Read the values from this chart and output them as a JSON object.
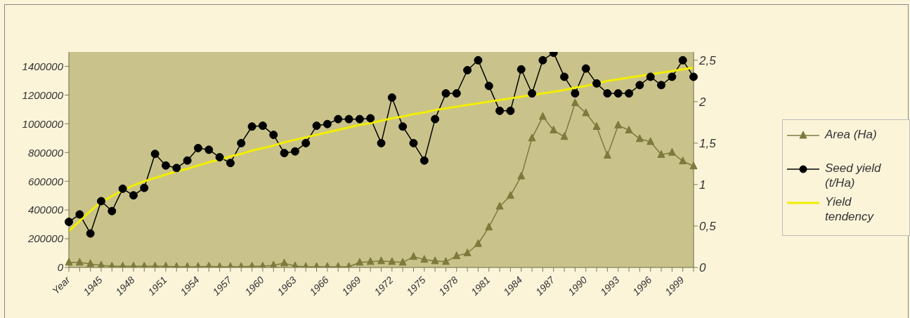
{
  "chart_data": {
    "type": "line",
    "categories": [
      "Year",
      null,
      null,
      "1945",
      null,
      null,
      "1948",
      null,
      null,
      "1951",
      null,
      null,
      "1954",
      null,
      null,
      "1957",
      null,
      null,
      "1960",
      null,
      null,
      "1963",
      null,
      null,
      "1966",
      null,
      null,
      "1969",
      null,
      null,
      "1972",
      null,
      null,
      "1975",
      null,
      null,
      "1978",
      null,
      null,
      "1981",
      null,
      null,
      "1984",
      null,
      null,
      "1987",
      null,
      null,
      "1990",
      null,
      null,
      "1993",
      null,
      null,
      "1996",
      null,
      null,
      "1999",
      null
    ],
    "series": [
      {
        "name": "Area (Ha)",
        "color": "#7d7a3c",
        "marker": "triangle",
        "axis": "y",
        "values": [
          35000,
          35000,
          25000,
          15000,
          8000,
          8000,
          8000,
          8000,
          8000,
          8000,
          5000,
          5000,
          5000,
          8000,
          5000,
          5000,
          5000,
          8000,
          8000,
          15000,
          30000,
          10000,
          5000,
          5000,
          5000,
          5000,
          5000,
          35000,
          40000,
          45000,
          40000,
          35000,
          75000,
          55000,
          45000,
          40000,
          80000,
          100000,
          165000,
          280000,
          425000,
          500000,
          635000,
          900000,
          1050000,
          955000,
          910000,
          1145000,
          1075000,
          980000,
          780000,
          990000,
          955000,
          895000,
          875000,
          785000,
          800000,
          740000,
          705000
        ]
      },
      {
        "name": "Seed yield (t/Ha)",
        "color": "#000000",
        "marker": "circle",
        "axis": "y2",
        "values": [
          0.55,
          0.64,
          0.41,
          0.8,
          0.68,
          0.95,
          0.87,
          0.96,
          1.37,
          1.23,
          1.2,
          1.29,
          1.44,
          1.42,
          1.33,
          1.26,
          1.5,
          1.7,
          1.71,
          1.6,
          1.38,
          1.4,
          1.5,
          1.71,
          1.73,
          1.79,
          1.79,
          1.79,
          1.8,
          1.5,
          2.05,
          1.7,
          1.5,
          1.29,
          1.79,
          2.1,
          2.1,
          2.38,
          2.5,
          2.19,
          1.89,
          1.89,
          2.39,
          2.1,
          2.5,
          2.59,
          2.3,
          2.1,
          2.4,
          2.22,
          2.1,
          2.1,
          2.1,
          2.2,
          2.3,
          2.2,
          2.3,
          2.5,
          2.3
        ]
      },
      {
        "name": "Yield tendency",
        "color": "#f2ee00",
        "marker": "none",
        "axis": "y2",
        "values": [
          0.44,
          0.56,
          0.68,
          0.79,
          0.86,
          0.93,
          0.99,
          1.04,
          1.08,
          1.12,
          1.16,
          1.19,
          1.23,
          1.27,
          1.3,
          1.34,
          1.37,
          1.41,
          1.44,
          1.47,
          1.51,
          1.54,
          1.57,
          1.6,
          1.63,
          1.66,
          1.69,
          1.72,
          1.74,
          1.77,
          1.8,
          1.82,
          1.85,
          1.87,
          1.9,
          1.92,
          1.94,
          1.96,
          1.98,
          2.0,
          2.02,
          2.04,
          2.06,
          2.08,
          2.1,
          2.12,
          2.14,
          2.17,
          2.19,
          2.22,
          2.25,
          2.27,
          2.29,
          2.31,
          2.33,
          2.35,
          2.37,
          2.39,
          2.41
        ]
      }
    ],
    "ylim": [
      0,
      1500000
    ],
    "yticks": [
      0,
      200000,
      400000,
      600000,
      800000,
      1000000,
      1200000,
      1400000
    ],
    "y2lim": [
      0,
      2.6
    ],
    "y2ticks": [
      0,
      {
        "value": 0.5,
        "label": "0,5"
      },
      1,
      {
        "value": 1.5,
        "label": "1,5"
      },
      2,
      {
        "value": 2.5,
        "label": "2,5"
      }
    ],
    "grid": false,
    "legend": "right"
  }
}
